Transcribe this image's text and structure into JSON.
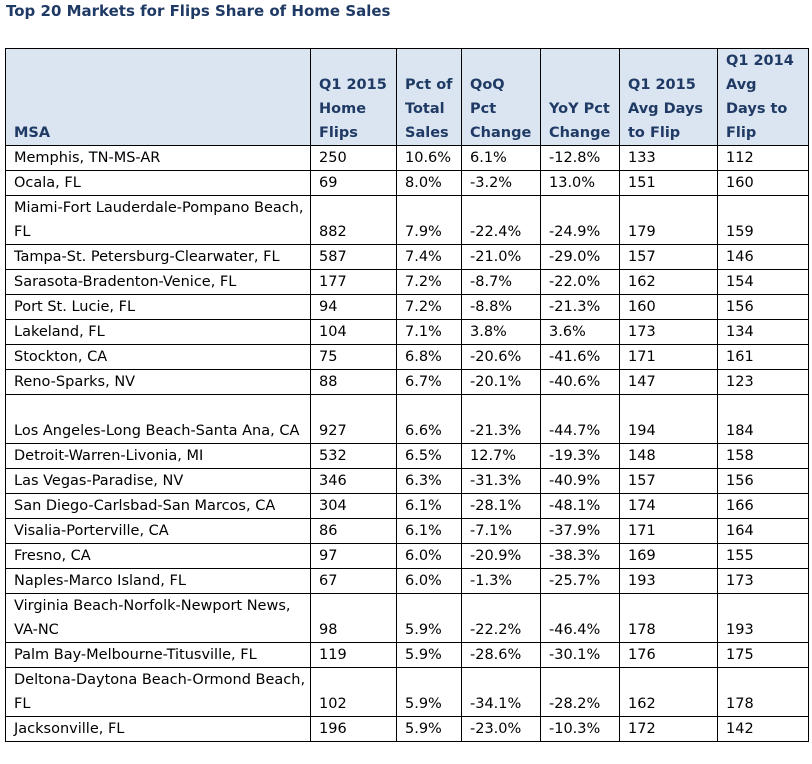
{
  "title": "Top 20 Markets for Flips Share of Home Sales",
  "columns": [
    [
      "MSA"
    ],
    [
      "Q1 2015",
      "Home",
      "Flips"
    ],
    [
      "Pct of",
      "Total",
      "Sales"
    ],
    [
      "QoQ",
      "Pct",
      "Change"
    ],
    [
      "YoY Pct",
      "Change"
    ],
    [
      "Q1 2015",
      "Avg Days",
      "to Flip"
    ],
    [
      "Q1 2014",
      "Avg",
      "Days to",
      "Flip"
    ]
  ],
  "rows": [
    [
      "Memphis, TN-MS-AR",
      "250",
      "10.6%",
      "6.1%",
      "-12.8%",
      "133",
      "112"
    ],
    [
      "Ocala, FL",
      "69",
      "8.0%",
      "-3.2%",
      "13.0%",
      "151",
      "160"
    ],
    [
      "Miami-Fort Lauderdale-Pompano Beach, FL",
      "882",
      "7.9%",
      "-22.4%",
      "-24.9%",
      "179",
      "159"
    ],
    [
      "Tampa-St. Petersburg-Clearwater, FL",
      "587",
      "7.4%",
      "-21.0%",
      "-29.0%",
      "157",
      "146"
    ],
    [
      "Sarasota-Bradenton-Venice, FL",
      "177",
      "7.2%",
      "-8.7%",
      "-22.0%",
      "162",
      "154"
    ],
    [
      "Port St. Lucie, FL",
      "94",
      "7.2%",
      "-8.8%",
      "-21.3%",
      "160",
      "156"
    ],
    [
      "Lakeland, FL",
      "104",
      "7.1%",
      "3.8%",
      "3.6%",
      "173",
      "134"
    ],
    [
      "Stockton, CA",
      "75",
      "6.8%",
      "-20.6%",
      "-41.6%",
      "171",
      "161"
    ],
    [
      "Reno-Sparks, NV",
      "88",
      "6.7%",
      "-20.1%",
      "-40.6%",
      "147",
      "123"
    ],
    [
      "Los Angeles-Long Beach-Santa Ana, CA",
      "927",
      "6.6%",
      "-21.3%",
      "-44.7%",
      "194",
      "184"
    ],
    [
      "Detroit-Warren-Livonia, MI",
      "532",
      "6.5%",
      "12.7%",
      "-19.3%",
      "148",
      "158"
    ],
    [
      "Las Vegas-Paradise, NV",
      "346",
      "6.3%",
      "-31.3%",
      "-40.9%",
      "157",
      "156"
    ],
    [
      "San Diego-Carlsbad-San Marcos, CA",
      "304",
      "6.1%",
      "-28.1%",
      "-48.1%",
      "174",
      "166"
    ],
    [
      "Visalia-Porterville, CA",
      "86",
      "6.1%",
      "-7.1%",
      "-37.9%",
      "171",
      "164"
    ],
    [
      "Fresno, CA",
      "97",
      "6.0%",
      "-20.9%",
      "-38.3%",
      "169",
      "155"
    ],
    [
      "Naples-Marco Island, FL",
      "67",
      "6.0%",
      "-1.3%",
      "-25.7%",
      "193",
      "173"
    ],
    [
      "Virginia Beach-Norfolk-Newport News, VA-NC",
      "98",
      "5.9%",
      "-22.2%",
      "-46.4%",
      "178",
      "193"
    ],
    [
      "Palm Bay-Melbourne-Titusville, FL",
      "119",
      "5.9%",
      "-28.6%",
      "-30.1%",
      "176",
      "175"
    ],
    [
      "Deltona-Daytona Beach-Ormond Beach, FL",
      "102",
      "5.9%",
      "-34.1%",
      "-28.2%",
      "162",
      "178"
    ],
    [
      "Jacksonville, FL",
      "196",
      "5.9%",
      "-23.0%",
      "-10.3%",
      "172",
      "142"
    ]
  ],
  "colors": {
    "header_bg": "#dbe5f1",
    "header_text": "#1f3a64",
    "title_text": "#1f3a64",
    "border": "#000000"
  }
}
